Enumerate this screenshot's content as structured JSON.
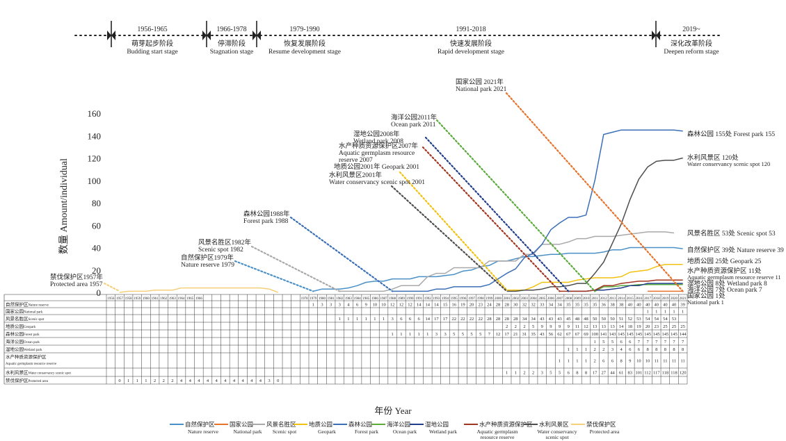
{
  "chart_data": {
    "type": "line",
    "title": "",
    "xlabel": "年份 Year",
    "ylabel": "数量 Amount/individual",
    "ylim": [
      0,
      160
    ],
    "yticks": [
      0,
      20,
      40,
      60,
      80,
      100,
      120,
      140,
      160
    ],
    "start_year": 1956,
    "end_year": 2021,
    "stages": [
      {
        "years": "1956-1965",
        "zh": "萌芽起步阶段",
        "en": "Budding start stage"
      },
      {
        "years": "1966-1978",
        "zh": "停滞阶段",
        "en": "Stagnation stage"
      },
      {
        "years": "1979-1990",
        "zh": "恢复发展阶段",
        "en": "Resume development stage"
      },
      {
        "years": "1991-2018",
        "zh": "快速发展阶段",
        "en": "Rapid development stage"
      },
      {
        "years": "2019~",
        "zh": "深化改革阶段",
        "en": "Deepen reform stage"
      }
    ],
    "series": [
      {
        "name": "自然保护区",
        "name_en": "Nature reserve",
        "row_label": "自然保护区",
        "row_label_en": "Nature reserve",
        "color": "#4a90c8",
        "first_year": 1979,
        "values": [
          1,
          3,
          3,
          3,
          4,
          6,
          9,
          10,
          10,
          12,
          12,
          12,
          14,
          14,
          14,
          15,
          16,
          19,
          20,
          23,
          24,
          28,
          28,
          30,
          32,
          32,
          33,
          34,
          34,
          35,
          35,
          35,
          35,
          36,
          38,
          38,
          40,
          40,
          40,
          40,
          40,
          40,
          39
        ],
        "end_label": "自然保护区 39处",
        "end_label_en": "Nature reserve 39",
        "callout": [
          "自然保护区1979年",
          "Nature reserve 1979"
        ]
      },
      {
        "name": "国家公园",
        "name_en": "National park",
        "row_label": "国家公园",
        "row_label_en": "National park",
        "color": "#e8722a",
        "first_year": 2017,
        "values": [
          1,
          1,
          1,
          1,
          1
        ],
        "end_label": "国家公园 1处",
        "end_label_en": "National park 1",
        "callout": [
          "国家公园 2021年",
          "National park 2021"
        ]
      },
      {
        "name": "风景名胜区",
        "name_en": "Scenic spot",
        "row_label": "风景名胜区",
        "row_label_en": "Scenic spot",
        "color": "#a9a9a9",
        "first_year": 1982,
        "values": [
          1,
          1,
          1,
          1,
          1,
          1,
          3,
          6,
          6,
          6,
          14,
          17,
          17,
          22,
          22,
          22,
          22,
          28,
          28,
          28,
          28,
          34,
          34,
          43,
          43,
          43,
          45,
          48,
          48,
          50,
          50,
          50,
          51,
          52,
          53,
          54,
          54,
          54,
          53
        ],
        "end_label": "风景名胜区 53处",
        "end_label_en": "Scenic spot 53",
        "callout": [
          "风景名胜区1982年",
          "Scenic spot 1982"
        ]
      },
      {
        "name": "地质公园",
        "name_en": "Geopark",
        "row_label": "地质公园",
        "row_label_en": "Geopark",
        "color": "#f2c10f",
        "first_year": 2001,
        "values": [
          2,
          2,
          2,
          5,
          9,
          9,
          9,
          9,
          11,
          12,
          13,
          13,
          13,
          14,
          18,
          19,
          20,
          23,
          25,
          25,
          25
        ],
        "end_label": "地质公园 25处",
        "end_label_en": "Geopark 25",
        "callout": [
          "地质公园2001年 Geopark 2001"
        ]
      },
      {
        "name": "森林公园",
        "name_en": "Forest park",
        "row_label": "森林公园",
        "row_label_en": "Forest park",
        "color": "#3a6fb8",
        "first_year": 1988,
        "values": [
          1,
          1,
          1,
          1,
          1,
          3,
          3,
          5,
          5,
          5,
          5,
          7,
          12,
          17,
          21,
          31,
          35,
          43,
          56,
          62,
          67,
          67,
          69,
          100,
          141,
          143,
          145,
          145,
          145,
          145,
          145,
          145,
          145,
          144
        ],
        "end_label": "森林公园 155处",
        "end_label_en": "Forest park 155",
        "callout": [
          "森林公园1988年",
          "Forest park 1988"
        ]
      },
      {
        "name": "海洋公园",
        "name_en": "Ocean park",
        "row_label": "海洋公园",
        "row_label_en": "Ocean park",
        "color": "#5aaa3c",
        "first_year": 2011,
        "values": [
          1,
          5,
          5,
          6,
          6,
          7,
          7,
          7,
          7,
          7,
          7
        ],
        "end_label": "海洋公园 7处",
        "end_label_en": "Ocean park 7",
        "callout": [
          "海洋公园2011年",
          "Ocean park 2011"
        ]
      },
      {
        "name": "湿地公园",
        "name_en": "Wetland park",
        "row_label": "湿地公园",
        "row_label_en": "Wetland park",
        "color": "#1f3d8a",
        "first_year": 2008,
        "values": [
          1,
          1,
          1,
          2,
          2,
          3,
          4,
          6,
          6,
          8,
          8,
          8,
          8,
          8
        ],
        "end_label": "湿地公园 8处",
        "end_label_en": "Wetland park 8",
        "callout": [
          "湿地公园2008年",
          "Wetland park 2008"
        ]
      },
      {
        "name": "水产种质资源保护区",
        "name_en": "Aquatic germplasm resource reserve",
        "row_label": "水产种质资源保护区",
        "row_label_en": "Aquatic germplasm resource reserve",
        "color": "#a3341f",
        "first_year": 2007,
        "values": [
          1,
          1,
          1,
          1,
          2,
          6,
          6,
          8,
          9,
          10,
          10,
          11,
          11,
          11,
          11
        ],
        "end_label": "水产种质资源保护区 11处",
        "end_label_en": "Aquatic germplasm resource reserve 11",
        "callout": [
          "水产种质资源保护区2007年",
          "Aquatic germplasm resource",
          "reserve 2007"
        ]
      },
      {
        "name": "水利风景区",
        "name_en": "Water conservancy scenic spot",
        "row_label": "水利风景区",
        "row_label_en": "Water conservancy scenic spot",
        "color": "#4d4d4d",
        "first_year": 2001,
        "values": [
          1,
          1,
          2,
          2,
          3,
          5,
          5,
          6,
          8,
          8,
          17,
          27,
          44,
          61,
          83,
          101,
          112,
          117,
          118,
          118,
          120
        ],
        "end_label": "水利风景区 120处",
        "end_label_en": "Water conservancy scenic spot 120",
        "callout": [
          "水利风景区2001年",
          "Water conservancy scenic spot 2001"
        ]
      },
      {
        "name": "禁伐保护区",
        "name_en": "Protected area",
        "row_label": "禁伐保护区",
        "row_label_en": "Protected area",
        "color": "#f5cf7a",
        "first_year": 1957,
        "values": [
          0,
          1,
          1,
          1,
          2,
          2,
          2,
          4,
          4,
          4,
          4,
          4,
          4,
          4,
          4,
          4,
          4,
          3,
          0
        ],
        "end_label": "",
        "end_label_en": "",
        "callout": [
          "禁伐保护区1957年",
          "Protected area 1957"
        ]
      }
    ],
    "legend": [
      {
        "zh": "自然保护区",
        "en": "Nature reserve"
      },
      {
        "zh": "国家公园",
        "en": "National park"
      },
      {
        "zh": "风景名胜区",
        "en": "Scenic spot"
      },
      {
        "zh": "地质公园",
        "en": "Geopark"
      },
      {
        "zh": "森林公园",
        "en": "Forest park"
      },
      {
        "zh": "海洋公园",
        "en": "Ocean park"
      },
      {
        "zh": "湿地公园",
        "en": "Wetland park"
      },
      {
        "zh": "水产种质资源保护区",
        "en": "Aquatic germplasm resource reserve"
      },
      {
        "zh": "水利风景区",
        "en": "Water conservancy scenic spot"
      },
      {
        "zh": "禁伐保护区",
        "en": "Protected area"
      }
    ]
  }
}
